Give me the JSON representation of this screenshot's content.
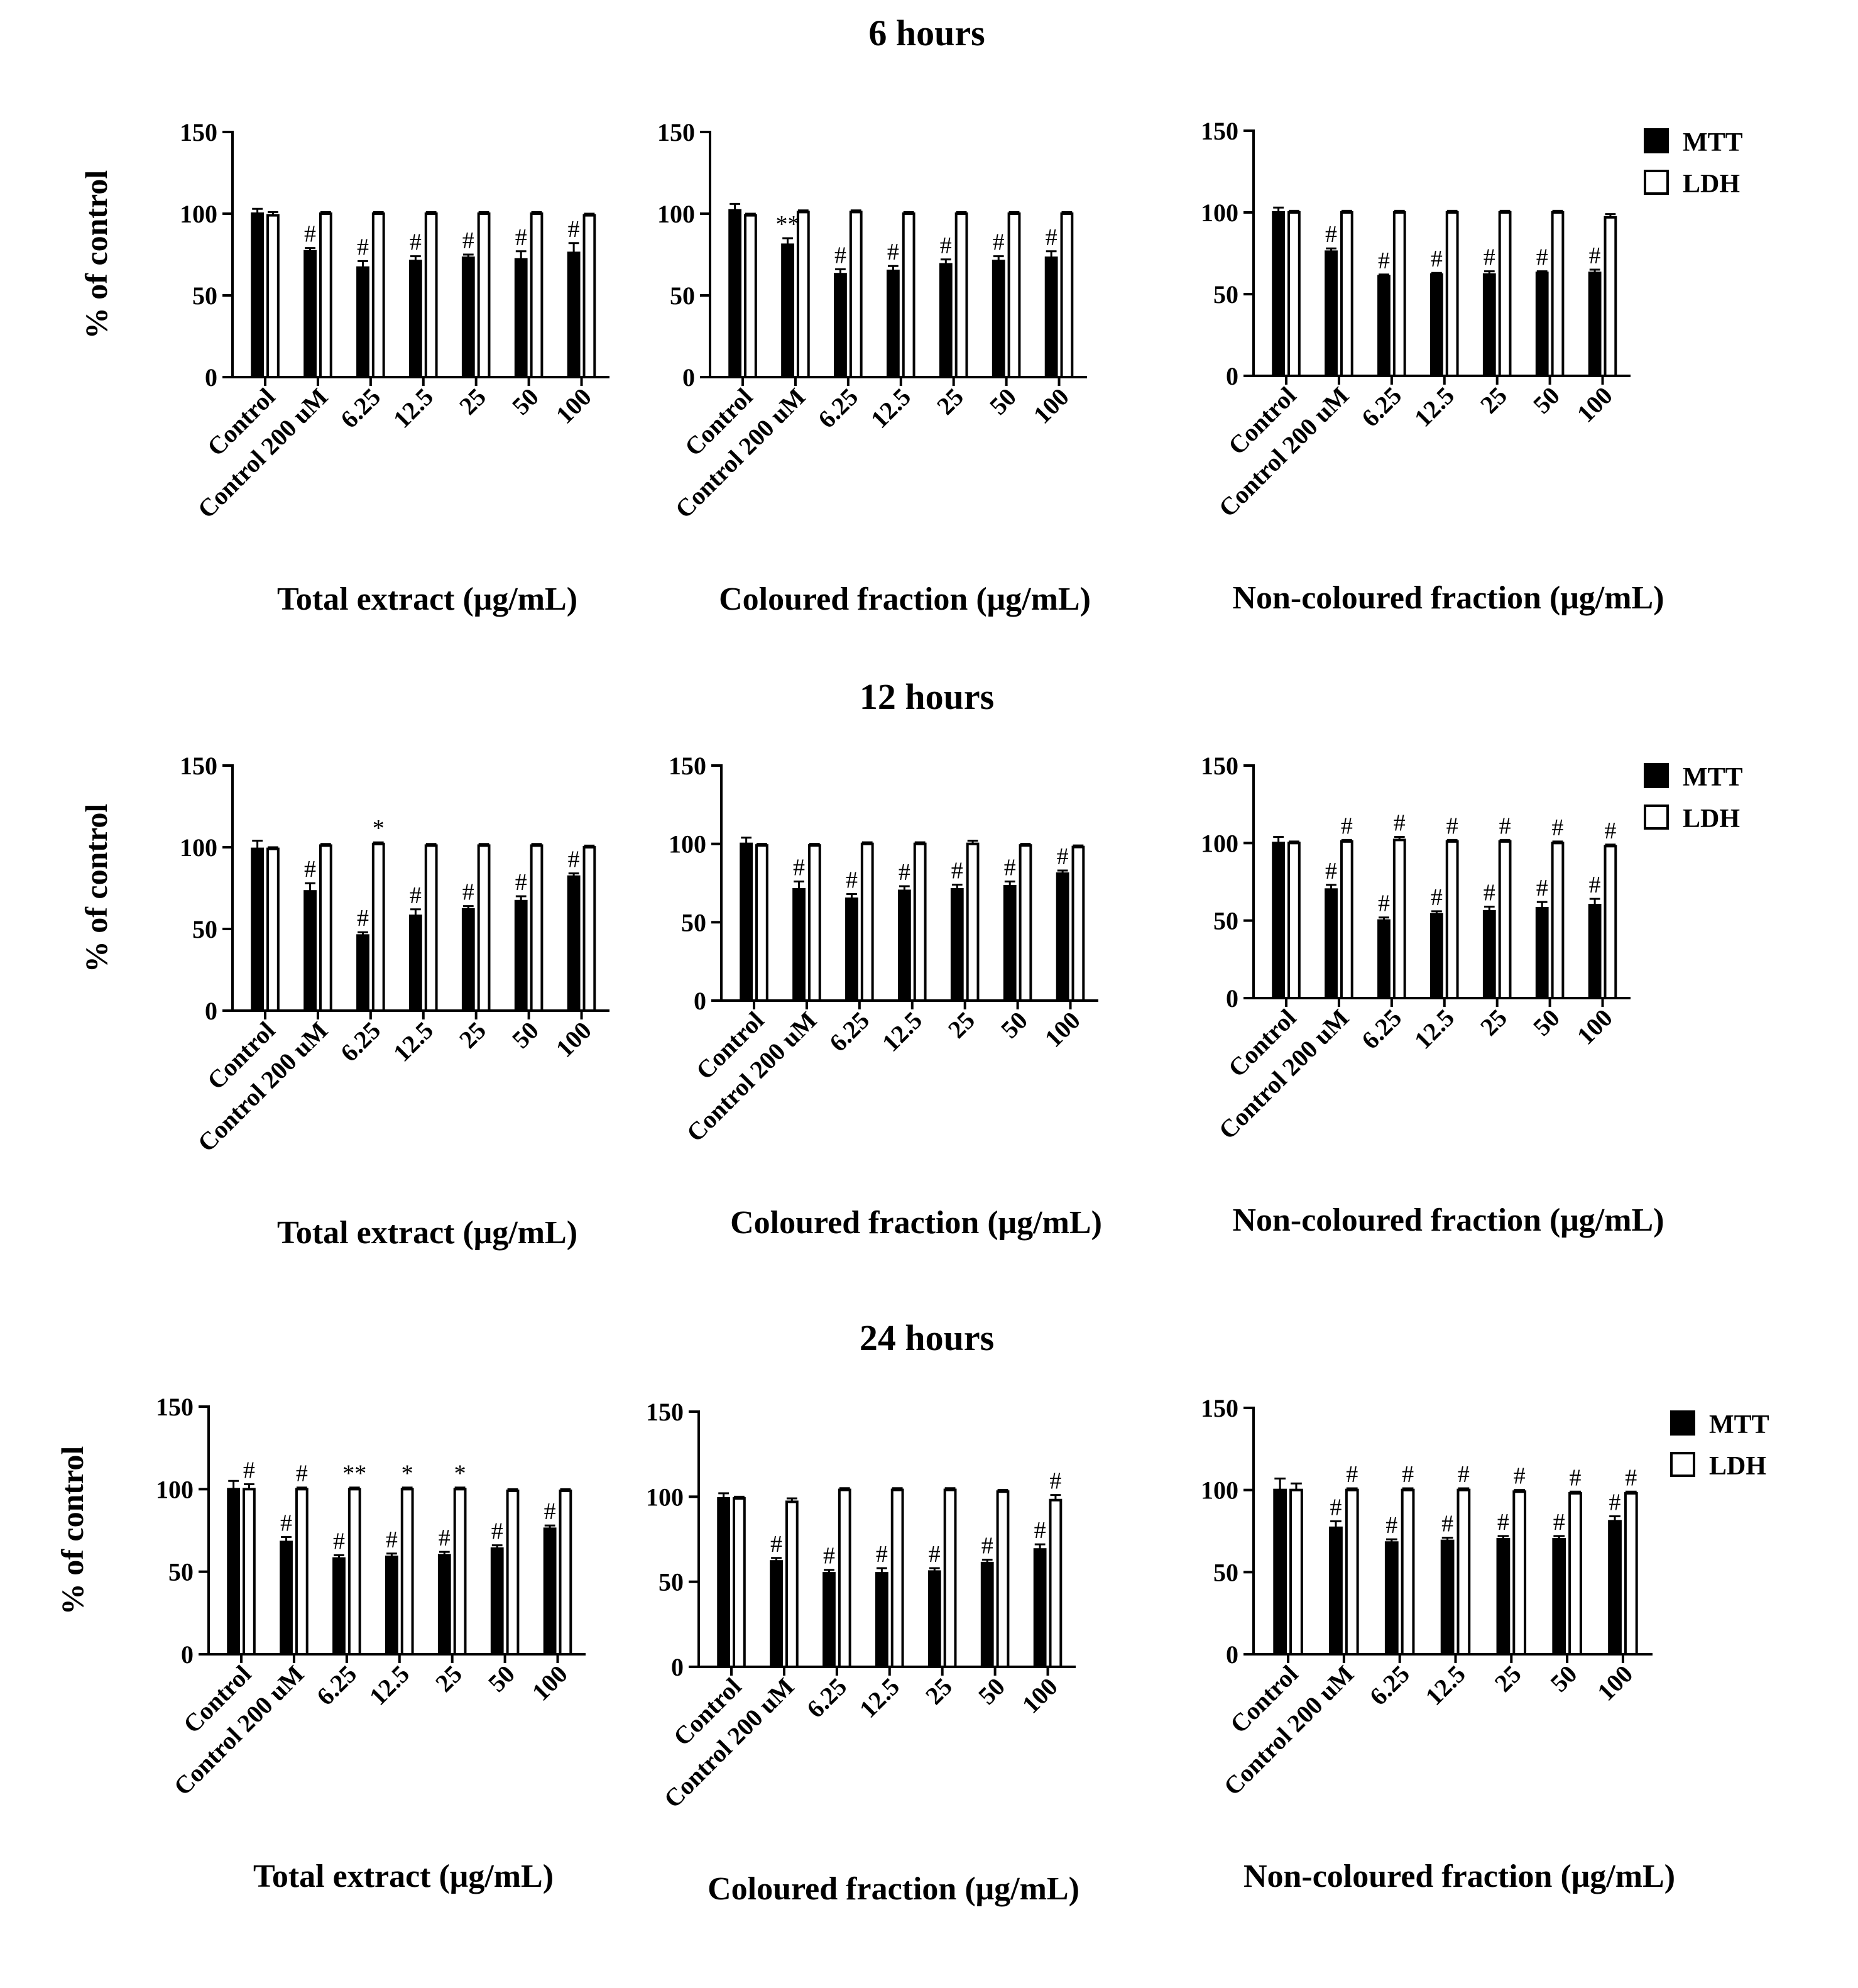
{
  "figure": {
    "series_names": [
      "MTT",
      "LDH"
    ],
    "colors": {
      "MTT": "#000000",
      "LDH": "#ffffff",
      "axis": "#000000"
    }
  },
  "chart_data": [
    {
      "type": "bar",
      "title": "6 hours",
      "xlabel": "Total extract (μg/mL)",
      "ylabel": "% of control",
      "ylim": [
        0,
        150
      ],
      "yticks": [
        0,
        50,
        100,
        150
      ],
      "categories": [
        "Control",
        "Control 200 uM",
        "6.25",
        "12.5",
        "25",
        "50",
        "100"
      ],
      "series": [
        {
          "name": "MTT",
          "values": [
            100,
            77,
            67,
            71,
            73,
            72,
            76
          ],
          "errors": [
            3,
            2,
            4,
            3,
            2,
            5,
            6
          ],
          "marks": [
            "",
            "#",
            "#",
            "#",
            "#",
            "#",
            "#"
          ]
        },
        {
          "name": "LDH",
          "values": [
            99,
            100,
            100,
            100,
            100,
            100,
            99
          ],
          "errors": [
            2,
            1,
            1,
            1,
            1,
            1,
            1
          ],
          "marks": [
            "",
            "",
            "",
            "",
            "",
            "",
            ""
          ]
        }
      ],
      "legend": true
    },
    {
      "type": "bar",
      "title": "",
      "xlabel": "Coloured fraction (μg/mL)",
      "ylabel": "",
      "ylim": [
        0,
        150
      ],
      "yticks": [
        0,
        50,
        100,
        150
      ],
      "categories": [
        "Control",
        "Control 200 uM",
        "6.25",
        "12.5",
        "25",
        "50",
        "100"
      ],
      "series": [
        {
          "name": "MTT",
          "values": [
            102,
            81,
            63,
            65,
            69,
            71,
            73
          ],
          "errors": [
            4,
            4,
            3,
            3,
            3,
            3,
            4
          ],
          "marks": [
            "",
            "**",
            "#",
            "#",
            "#",
            "#",
            "#"
          ]
        },
        {
          "name": "LDH",
          "values": [
            99,
            101,
            101,
            100,
            100,
            100,
            100
          ],
          "errors": [
            1,
            1,
            1,
            1,
            1,
            1,
            1
          ],
          "marks": [
            "",
            "",
            "",
            "",
            "",
            "",
            ""
          ]
        }
      ],
      "legend": false
    },
    {
      "type": "bar",
      "title": "",
      "xlabel": "Non-coloured fraction (μg/mL)",
      "ylabel": "",
      "ylim": [
        0,
        150
      ],
      "yticks": [
        0,
        50,
        100,
        150
      ],
      "categories": [
        "Control",
        "Control 200 uM",
        "6.25",
        "12.5",
        "25",
        "50",
        "100"
      ],
      "series": [
        {
          "name": "MTT",
          "values": [
            100,
            76,
            61,
            62,
            62,
            63,
            63
          ],
          "errors": [
            3,
            2,
            1,
            1,
            2,
            1,
            2
          ],
          "marks": [
            "",
            "#",
            "#",
            "#",
            "#",
            "#",
            "#"
          ]
        },
        {
          "name": "LDH",
          "values": [
            100,
            100,
            100,
            100,
            100,
            100,
            97
          ],
          "errors": [
            1,
            1,
            1,
            1,
            1,
            1,
            2
          ],
          "marks": [
            "",
            "",
            "",
            "",
            "",
            "",
            ""
          ]
        }
      ],
      "legend": true
    },
    {
      "type": "bar",
      "title": "12 hours",
      "xlabel": "Total extract (μg/mL)",
      "ylabel": "% of control",
      "ylim": [
        0,
        150
      ],
      "yticks": [
        0,
        50,
        100,
        150
      ],
      "categories": [
        "Control",
        "Control 200 uM",
        "6.25",
        "12.5",
        "25",
        "50",
        "100"
      ],
      "series": [
        {
          "name": "MTT",
          "values": [
            99,
            73,
            46,
            58,
            62,
            67,
            82
          ],
          "errors": [
            5,
            5,
            2,
            4,
            2,
            3,
            2
          ],
          "marks": [
            "",
            "#",
            "#",
            "#",
            "#",
            "#",
            "#"
          ]
        },
        {
          "name": "LDH",
          "values": [
            99,
            101,
            102,
            101,
            101,
            101,
            100
          ],
          "errors": [
            1,
            1,
            1,
            1,
            1,
            1,
            1
          ],
          "marks": [
            "",
            "",
            "*",
            "",
            "",
            "",
            ""
          ]
        }
      ],
      "legend": true
    },
    {
      "type": "bar",
      "title": "",
      "xlabel": "Coloured fraction (μg/mL)",
      "ylabel": "",
      "ylim": [
        0,
        150
      ],
      "yticks": [
        0,
        50,
        100,
        150
      ],
      "categories": [
        "Control",
        "Control 200 uM",
        "6.25",
        "12.5",
        "25",
        "50",
        "100"
      ],
      "series": [
        {
          "name": "MTT",
          "values": [
            100,
            71,
            65,
            70,
            71,
            73,
            81
          ],
          "errors": [
            4,
            5,
            3,
            3,
            3,
            3,
            2
          ],
          "marks": [
            "",
            "#",
            "#",
            "#",
            "#",
            "#",
            "#"
          ]
        },
        {
          "name": "LDH",
          "values": [
            99,
            99,
            100,
            100,
            100,
            99,
            98
          ],
          "errors": [
            1,
            1,
            1,
            1,
            2,
            1,
            1
          ],
          "marks": [
            "",
            "",
            "",
            "",
            "",
            "",
            ""
          ]
        }
      ],
      "legend": false
    },
    {
      "type": "bar",
      "title": "",
      "xlabel": "Non-coloured fraction (μg/mL)",
      "ylabel": "",
      "ylim": [
        0,
        150
      ],
      "yticks": [
        0,
        50,
        100,
        150
      ],
      "categories": [
        "Control",
        "Control 200 uM",
        "6.25",
        "12.5",
        "25",
        "50",
        "100"
      ],
      "series": [
        {
          "name": "MTT",
          "values": [
            100,
            70,
            50,
            54,
            56,
            58,
            60
          ],
          "errors": [
            4,
            3,
            2,
            2,
            3,
            4,
            4
          ],
          "marks": [
            "",
            "#",
            "#",
            "#",
            "#",
            "#",
            "#"
          ]
        },
        {
          "name": "LDH",
          "values": [
            100,
            101,
            102,
            101,
            101,
            100,
            98
          ],
          "errors": [
            1,
            1,
            2,
            1,
            1,
            1,
            1
          ],
          "marks": [
            "",
            "#",
            "#",
            "#",
            "#",
            "#",
            "#"
          ]
        }
      ],
      "legend": true
    },
    {
      "type": "bar",
      "title": "24 hours",
      "xlabel": "Total extract (μg/mL)",
      "ylabel": "% of control",
      "ylim": [
        0,
        150
      ],
      "yticks": [
        0,
        50,
        100,
        150
      ],
      "categories": [
        "Control",
        "Control 200 uM",
        "6.25",
        "12.5",
        "25",
        "50",
        "100"
      ],
      "series": [
        {
          "name": "MTT",
          "values": [
            100,
            68,
            58,
            59,
            60,
            64,
            76
          ],
          "errors": [
            5,
            3,
            2,
            2,
            2,
            2,
            2
          ],
          "marks": [
            "",
            "#",
            "#",
            "#",
            "#",
            "#",
            "#"
          ]
        },
        {
          "name": "LDH",
          "values": [
            100,
            100,
            100,
            100,
            100,
            99,
            99
          ],
          "errors": [
            3,
            1,
            1,
            1,
            1,
            1,
            1
          ],
          "marks": [
            "#",
            "#",
            "**",
            "*",
            "*",
            "",
            ""
          ]
        }
      ],
      "legend": true
    },
    {
      "type": "bar",
      "title": "",
      "xlabel": "Coloured fraction (μg/mL)",
      "ylabel": "",
      "ylim": [
        0,
        150
      ],
      "yticks": [
        0,
        50,
        100,
        150
      ],
      "categories": [
        "Control",
        "Control 200 uM",
        "6.25",
        "12.5",
        "25",
        "50",
        "100"
      ],
      "series": [
        {
          "name": "MTT",
          "values": [
            99,
            62,
            55,
            55,
            56,
            61,
            69
          ],
          "errors": [
            3,
            2,
            2,
            3,
            2,
            2,
            3
          ],
          "marks": [
            "",
            "#",
            "#",
            "#",
            "#",
            "#",
            "#"
          ]
        },
        {
          "name": "LDH",
          "values": [
            99,
            97,
            104,
            104,
            104,
            103,
            98
          ],
          "errors": [
            1,
            2,
            1,
            1,
            1,
            1,
            3
          ],
          "marks": [
            "",
            "",
            "",
            "",
            "",
            "",
            "#"
          ]
        }
      ],
      "legend": false
    },
    {
      "type": "bar",
      "title": "",
      "xlabel": "Non-coloured fraction (μg/mL)",
      "ylabel": "",
      "ylim": [
        0,
        150
      ],
      "yticks": [
        0,
        50,
        100,
        150
      ],
      "categories": [
        "Control",
        "Control 200 uM",
        "6.25",
        "12.5",
        "25",
        "50",
        "100"
      ],
      "series": [
        {
          "name": "MTT",
          "values": [
            100,
            77,
            68,
            69,
            70,
            70,
            81
          ],
          "errors": [
            7,
            4,
            2,
            2,
            2,
            2,
            3
          ],
          "marks": [
            "",
            "#",
            "#",
            "#",
            "#",
            "#",
            "#"
          ]
        },
        {
          "name": "LDH",
          "values": [
            100,
            100,
            100,
            100,
            99,
            98,
            98
          ],
          "errors": [
            4,
            1,
            1,
            1,
            1,
            1,
            1
          ],
          "marks": [
            "",
            "#",
            "#",
            "#",
            "#",
            "#",
            "#"
          ]
        }
      ],
      "legend": true
    }
  ]
}
